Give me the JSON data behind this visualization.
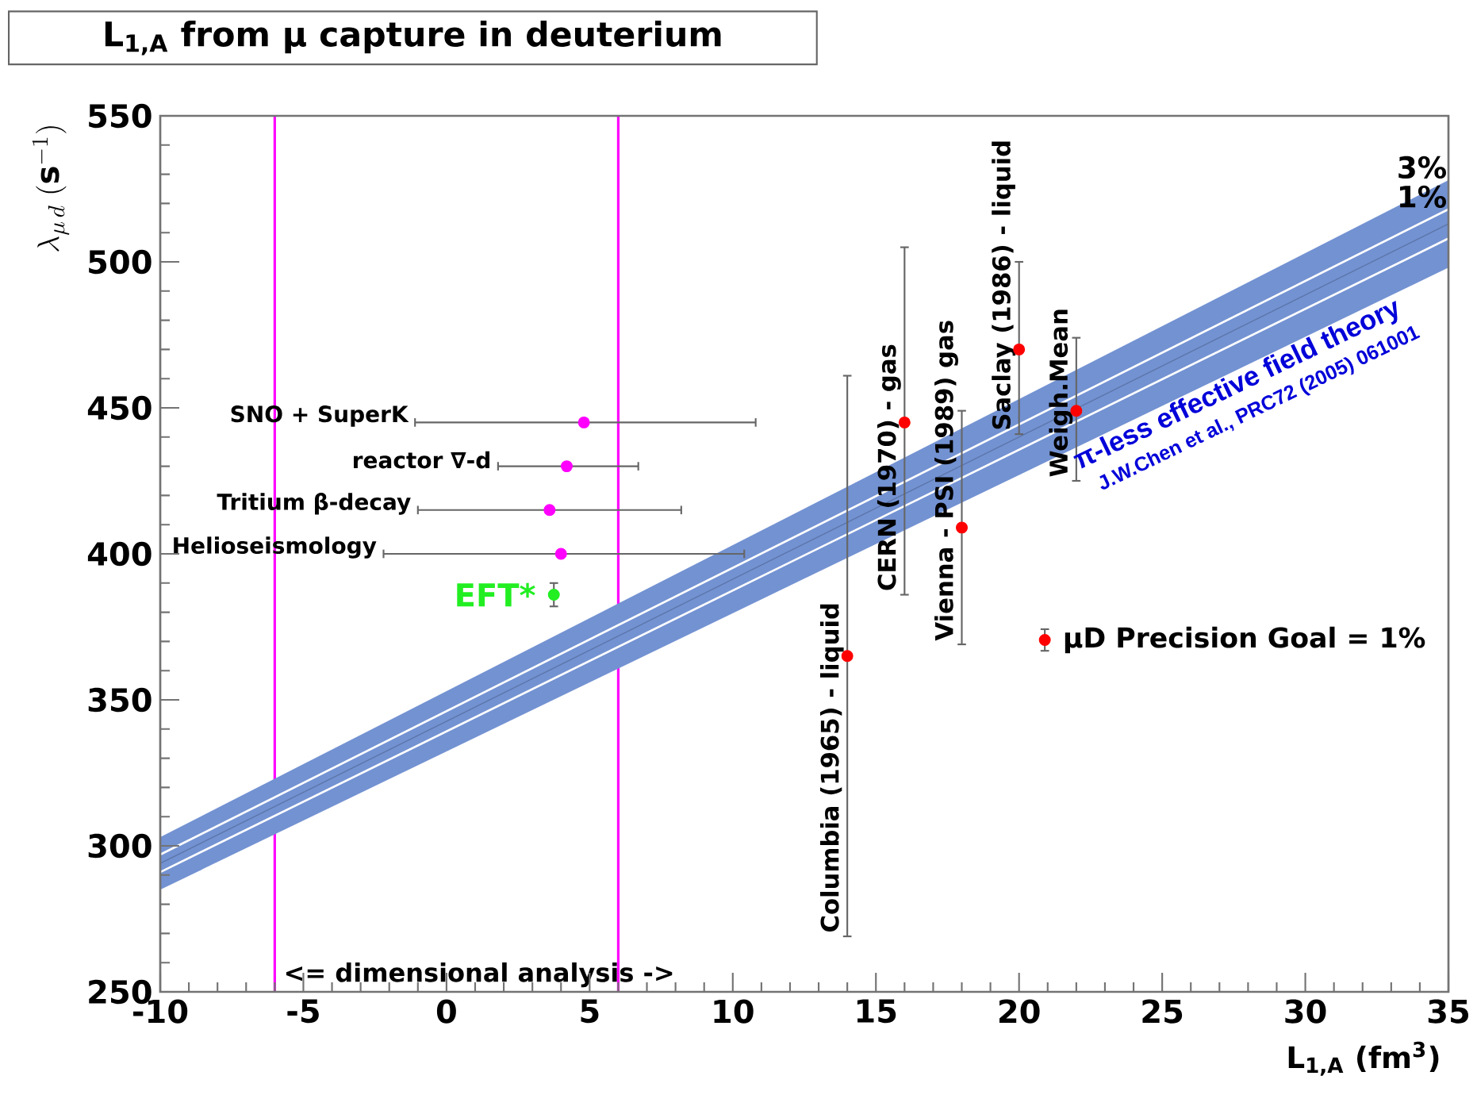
{
  "chart_data": {
    "type": "scatter",
    "title": "L$_{1,A}$ from μ capture in deuterium",
    "xlabel": "L$_{1,A}$ (fm$^{3}$)",
    "ylabel": "\\lambda_{\\mu\\, d}\\;(\\mathbf{s}^{-1})",
    "xlim": [
      -10,
      35
    ],
    "ylim": [
      250,
      550
    ],
    "xticks": [
      -10,
      -5,
      0,
      5,
      10,
      15,
      20,
      25,
      30,
      35
    ],
    "yticks": [
      250,
      300,
      350,
      400,
      450,
      500,
      550
    ],
    "line_style": "solid",
    "series": [
      {
        "type": "line",
        "color": "#5c75a8",
        "x": [
          -10,
          35
        ],
        "values": [
          294,
          513
        ],
        "lower": [
          285,
          498
        ],
        "upper": [
          303,
          528
        ]
      },
      {
        "type": "line",
        "name": "1%",
        "color": "#ffffff",
        "x": [
          -10,
          35
        ],
        "values": [
          297,
          518
        ]
      },
      {
        "type": "line",
        "color": "#ffffff",
        "x": [
          -10,
          35
        ],
        "values": [
          291,
          508
        ]
      },
      {
        "marker": "circle",
        "color": "#ff00ff",
        "x": [
          4.8,
          4.2,
          3.6,
          4.0
        ],
        "values": [
          445,
          430,
          415,
          400
        ],
        "xerrors": [
          [
            -1.1,
            10.8
          ],
          [
            1.8,
            6.7
          ],
          [
            -1.0,
            8.2
          ],
          [
            -2.2,
            10.4
          ]
        ]
      },
      {
        "name": "EFT*",
        "marker": "circle",
        "color": "#22ee22",
        "x": [
          3.75
        ],
        "values": [
          386
        ],
        "errors": [
          [
            382,
            390
          ]
        ]
      },
      {
        "name": "Columbia (1965) - liquid",
        "marker": "circle",
        "color": "#ff0000",
        "x": [
          14
        ],
        "values": [
          365
        ],
        "errors": [
          [
            269,
            461
          ]
        ]
      },
      {
        "name": "CERN (1970) - gas",
        "marker": "circle",
        "color": "#ff0000",
        "x": [
          16
        ],
        "values": [
          445
        ],
        "errors": [
          [
            386,
            505
          ]
        ]
      },
      {
        "name": "Vienna - PSI (1989) gas",
        "marker": "circle",
        "color": "#ff0000",
        "x": [
          18
        ],
        "values": [
          409
        ],
        "errors": [
          [
            369,
            449
          ]
        ]
      },
      {
        "name": "Saclay (1986) - liquid",
        "marker": "circle",
        "color": "#ff0000",
        "x": [
          20
        ],
        "values": [
          470
        ],
        "errors": [
          [
            441,
            500
          ]
        ]
      },
      {
        "name": "Weigh.Mean",
        "marker": "circle",
        "color": "#ff0000",
        "x": [
          22
        ],
        "values": [
          449
        ],
        "errors": [
          [
            425,
            474
          ]
        ]
      },
      {
        "name": "μD Precision Goal = 1%",
        "marker": "circle",
        "color": "#ff0000",
        "x": [
          20.9
        ],
        "values": [
          370.5
        ],
        "errors": [
          [
            366.8,
            374.2
          ]
        ]
      }
    ],
    "ref_lines": [
      {
        "axis": "x",
        "value": -6,
        "label": "<= dimensional analysis ->",
        "color": "#ff00ff"
      },
      {
        "axis": "x",
        "value": 6,
        "color": "#ff00ff"
      }
    ],
    "annotations": [
      "3%",
      "SNO + SuperK",
      "reactor ∇-d",
      "Tritium β-decay",
      "Helioseismology",
      "π-less effective field theory",
      "J.W.Chen et al., PRC72 (2005) 061001"
    ]
  }
}
